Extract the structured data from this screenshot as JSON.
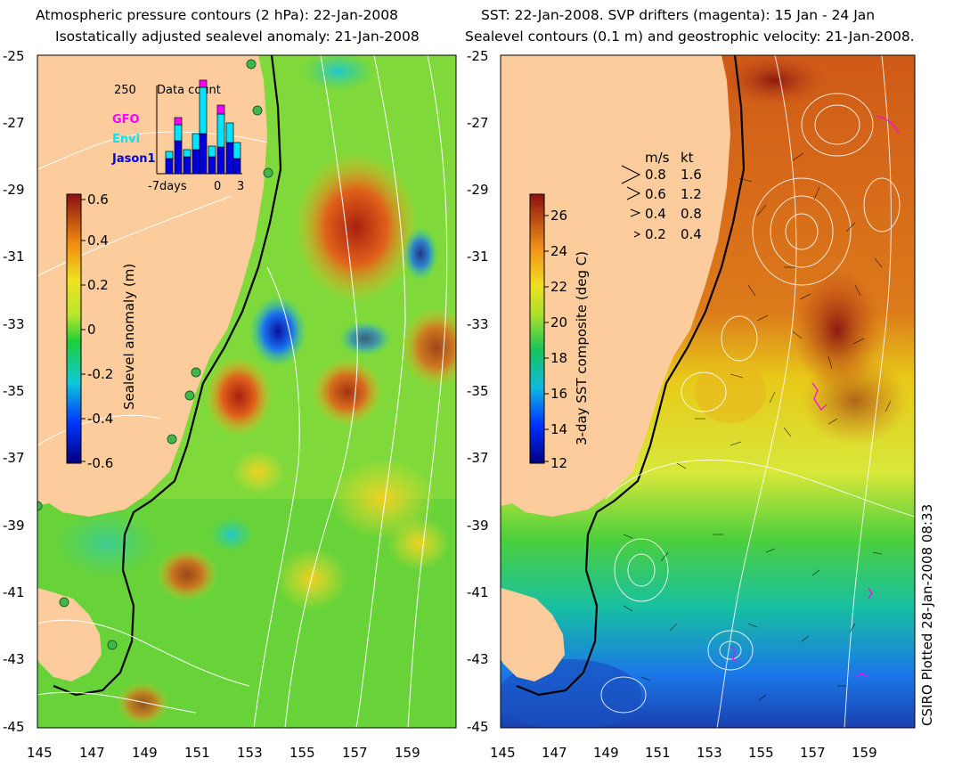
{
  "left_panel": {
    "title_line1": "Atmospheric pressure contours (2 hPa): 22-Jan-2008",
    "title_line2": "Isostatically adjusted sealevel anomaly: 21-Jan-2008",
    "colorbar": {
      "label": "Sealevel anomaly (m)",
      "ticks": [
        "0.6",
        "0.4",
        "0.2",
        "0",
        "-0.2",
        "-0.4",
        "-0.6"
      ],
      "range": [
        -0.6,
        0.6
      ]
    },
    "inset": {
      "title": "Data count",
      "ymax_label": "250",
      "x_labels": [
        "-7days",
        "0",
        "3"
      ],
      "legend": [
        {
          "name": "GFO",
          "color": "#ff00ff"
        },
        {
          "name": "Envi",
          "color": "#00e5ff"
        },
        {
          "name": "Jason1",
          "color": "#0000dd"
        }
      ]
    }
  },
  "right_panel": {
    "title_line1": "SST: 22-Jan-2008. SVP drifters (magenta): 15 Jan - 24 Jan",
    "title_line2": "Sealevel contours (0.1 m) and geostrophic velocity: 21-Jan-2008.",
    "colorbar": {
      "label": "3-day SST composite (deg C)",
      "ticks": [
        "26",
        "24",
        "22",
        "20",
        "18",
        "16",
        "14",
        "12"
      ],
      "range": [
        12,
        27
      ]
    },
    "velocity_key": {
      "header_ms": "m/s",
      "header_kt": "kt",
      "rows": [
        {
          "ms": "0.8",
          "kt": "1.6"
        },
        {
          "ms": "0.6",
          "kt": "1.2"
        },
        {
          "ms": "0.4",
          "kt": "0.8"
        },
        {
          "ms": "0.2",
          "kt": "0.4"
        }
      ]
    }
  },
  "axes": {
    "lat_ticks": [
      "-25",
      "-27",
      "-29",
      "-31",
      "-33",
      "-35",
      "-37",
      "-39",
      "-41",
      "-43",
      "-45"
    ],
    "lon_ticks": [
      "145",
      "147",
      "149",
      "151",
      "153",
      "155",
      "157",
      "159"
    ]
  },
  "credit": "CSIRO Plotted 28-Jan-2008 08:33",
  "colors": {
    "land": "#fccc9c",
    "sla_mid": "#7fd93a",
    "sst_warm": "#d9601a",
    "sst_cool": "#1e8cd0"
  }
}
